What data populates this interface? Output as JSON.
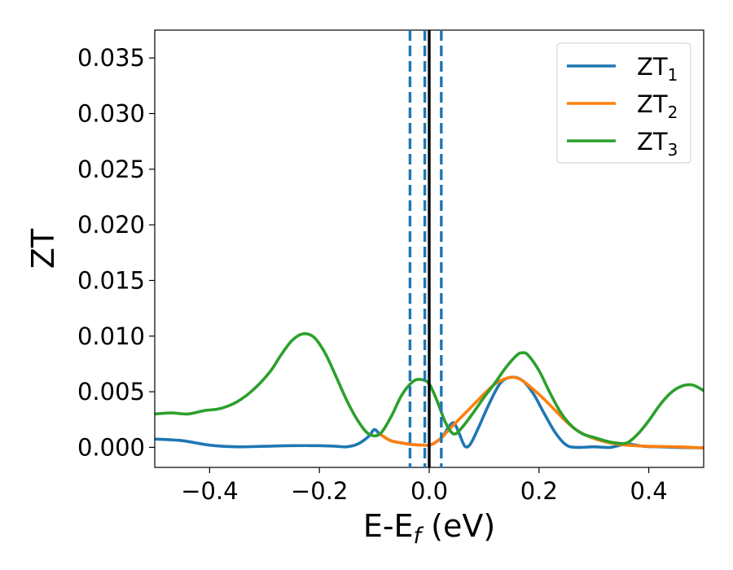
{
  "chart_data": {
    "type": "line",
    "title": "",
    "xlabel_main": "E-E",
    "xlabel_sub": "f",
    "xlabel_unit": " (eV)",
    "ylabel": "ZT",
    "xlim": [
      -0.5,
      0.5
    ],
    "ylim": [
      -0.0018,
      0.0375
    ],
    "x_ticks": [
      -0.4,
      -0.2,
      0.0,
      0.2,
      0.4
    ],
    "x_tick_labels": [
      "−0.4",
      "−0.2",
      "0.0",
      "0.2",
      "0.4"
    ],
    "y_ticks": [
      0.0,
      0.005,
      0.01,
      0.015,
      0.02,
      0.025,
      0.03,
      0.035
    ],
    "y_tick_labels": [
      "0.000",
      "0.005",
      "0.010",
      "0.015",
      "0.020",
      "0.025",
      "0.030",
      "0.035"
    ],
    "grid": false,
    "legend_position": "top-right",
    "vlines": [
      {
        "x": -0.035,
        "style": "dashed",
        "color": "#1f77b4"
      },
      {
        "x": -0.008,
        "style": "dashed",
        "color": "#1f77b4"
      },
      {
        "x": 0.0,
        "style": "solid",
        "color": "#000000"
      },
      {
        "x": 0.022,
        "style": "dashed",
        "color": "#1f77b4"
      }
    ],
    "series": [
      {
        "name_main": "ZT",
        "name_sub": "1",
        "color": "#1f77b4",
        "points": [
          [
            -0.5,
            0.00075
          ],
          [
            -0.45,
            0.0006
          ],
          [
            -0.4,
            0.0002
          ],
          [
            -0.35,
            5e-05
          ],
          [
            -0.3,
            0.0001
          ],
          [
            -0.25,
            0.00015
          ],
          [
            -0.2,
            0.00015
          ],
          [
            -0.17,
            0.0001
          ],
          [
            -0.15,
            5e-05
          ],
          [
            -0.13,
            0.0003
          ],
          [
            -0.11,
            0.001
          ],
          [
            -0.1,
            0.0016
          ],
          [
            -0.09,
            0.0012
          ],
          [
            -0.07,
            0.0006
          ],
          [
            -0.05,
            0.0004
          ],
          [
            -0.03,
            0.00025
          ],
          [
            -0.01,
            0.0002
          ],
          [
            0.0,
            0.0002
          ],
          [
            0.01,
            0.0004
          ],
          [
            0.025,
            0.001
          ],
          [
            0.035,
            0.0018
          ],
          [
            0.045,
            0.0022
          ],
          [
            0.055,
            0.0012
          ],
          [
            0.065,
            0.0001
          ],
          [
            0.075,
            0.0003
          ],
          [
            0.09,
            0.0018
          ],
          [
            0.11,
            0.004
          ],
          [
            0.13,
            0.0058
          ],
          [
            0.15,
            0.0063
          ],
          [
            0.17,
            0.006
          ],
          [
            0.19,
            0.0048
          ],
          [
            0.21,
            0.003
          ],
          [
            0.23,
            0.0013
          ],
          [
            0.25,
            0.0002
          ],
          [
            0.27,
            0.0
          ],
          [
            0.3,
            5e-05
          ],
          [
            0.33,
            0.0
          ],
          [
            0.36,
            0.0003
          ],
          [
            0.39,
            0.0001
          ],
          [
            0.42,
            5e-05
          ],
          [
            0.45,
            0.0
          ],
          [
            0.5,
            -5e-05
          ]
        ]
      },
      {
        "name_main": "ZT",
        "name_sub": "2",
        "color": "#ff7f0e",
        "points": [
          [
            -0.09,
            0.0012
          ],
          [
            -0.07,
            0.0006
          ],
          [
            -0.05,
            0.0004
          ],
          [
            -0.03,
            0.00025
          ],
          [
            -0.01,
            0.0002
          ],
          [
            0.0,
            0.0002
          ],
          [
            0.01,
            0.0004
          ],
          [
            0.025,
            0.001
          ],
          [
            0.04,
            0.0018
          ],
          [
            0.06,
            0.0028
          ],
          [
            0.08,
            0.0038
          ],
          [
            0.1,
            0.0048
          ],
          [
            0.12,
            0.0057
          ],
          [
            0.14,
            0.0062
          ],
          [
            0.155,
            0.0063
          ],
          [
            0.17,
            0.006
          ],
          [
            0.19,
            0.0052
          ],
          [
            0.21,
            0.0043
          ],
          [
            0.23,
            0.0033
          ],
          [
            0.25,
            0.0023
          ],
          [
            0.27,
            0.0015
          ],
          [
            0.3,
            0.0008
          ],
          [
            0.33,
            0.0004
          ],
          [
            0.36,
            0.0002
          ],
          [
            0.4,
            0.0001
          ],
          [
            0.45,
            5e-05
          ],
          [
            0.5,
            -5e-05
          ]
        ]
      },
      {
        "name_main": "ZT",
        "name_sub": "3",
        "color": "#2ca02c",
        "points": [
          [
            -0.5,
            0.003
          ],
          [
            -0.47,
            0.0031
          ],
          [
            -0.44,
            0.003
          ],
          [
            -0.41,
            0.0033
          ],
          [
            -0.38,
            0.0035
          ],
          [
            -0.35,
            0.0041
          ],
          [
            -0.32,
            0.0052
          ],
          [
            -0.29,
            0.0068
          ],
          [
            -0.27,
            0.0083
          ],
          [
            -0.25,
            0.0096
          ],
          [
            -0.23,
            0.0102
          ],
          [
            -0.21,
            0.0099
          ],
          [
            -0.19,
            0.0085
          ],
          [
            -0.17,
            0.0064
          ],
          [
            -0.15,
            0.0042
          ],
          [
            -0.13,
            0.0024
          ],
          [
            -0.11,
            0.0012
          ],
          [
            -0.09,
            0.0012
          ],
          [
            -0.07,
            0.0027
          ],
          [
            -0.05,
            0.0047
          ],
          [
            -0.03,
            0.0059
          ],
          [
            -0.015,
            0.0061
          ],
          [
            0.0,
            0.0057
          ],
          [
            0.015,
            0.0041
          ],
          [
            0.03,
            0.0022
          ],
          [
            0.045,
            0.0012
          ],
          [
            0.06,
            0.0018
          ],
          [
            0.08,
            0.0031
          ],
          [
            0.1,
            0.0045
          ],
          [
            0.12,
            0.0058
          ],
          [
            0.14,
            0.0072
          ],
          [
            0.16,
            0.0083
          ],
          [
            0.17,
            0.0085
          ],
          [
            0.18,
            0.0083
          ],
          [
            0.2,
            0.0069
          ],
          [
            0.22,
            0.0049
          ],
          [
            0.24,
            0.0031
          ],
          [
            0.26,
            0.0019
          ],
          [
            0.28,
            0.0012
          ],
          [
            0.3,
            0.0009
          ],
          [
            0.32,
            0.0006
          ],
          [
            0.34,
            0.0004
          ],
          [
            0.36,
            0.0004
          ],
          [
            0.38,
            0.0012
          ],
          [
            0.4,
            0.0024
          ],
          [
            0.42,
            0.0038
          ],
          [
            0.44,
            0.0049
          ],
          [
            0.46,
            0.0055
          ],
          [
            0.48,
            0.0056
          ],
          [
            0.5,
            0.0051
          ]
        ]
      }
    ]
  }
}
